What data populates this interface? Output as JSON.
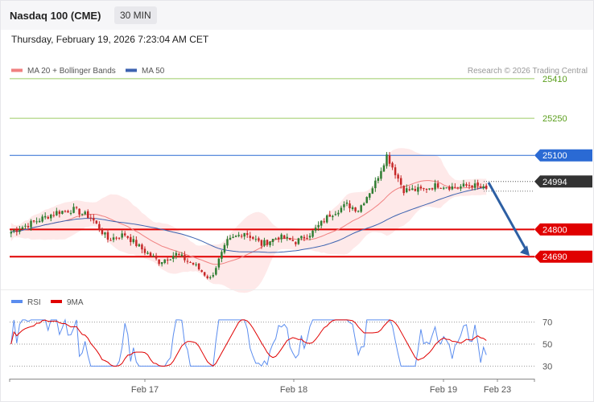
{
  "header": {
    "title": "Nasdaq 100 (CME)",
    "timeframe": "30 MIN"
  },
  "datetime": "Thursday, February 19, 2026 7:23:04 AM CET",
  "legend": {
    "ma20_label": "MA 20 + Bollinger Bands",
    "ma50_label": "MA 50",
    "copyright": "Research © 2026 Trading Central"
  },
  "rsi_legend": {
    "rsi_label": "RSI",
    "ma_label": "9MA"
  },
  "colors": {
    "bollinger": "#fde0e0",
    "ma20": "#f08080",
    "ma50": "#3d63b0",
    "candle_up": "#2e7d32",
    "candle_down": "#c62828",
    "resistance_green": "#9ccc65",
    "pivot_blue": "#2a6ad4",
    "support_red": "#e00000",
    "arrow": "#2d5fa3",
    "rsi": "#5b8def",
    "rsi_ma": "#e00000"
  },
  "chart_data": {
    "type": "candlestick",
    "price_axis": {
      "range": [
        24515,
        25465
      ]
    },
    "levels": [
      {
        "value": 25410,
        "label": "25410",
        "kind": "resistance"
      },
      {
        "value": 25250,
        "label": "25250",
        "kind": "resistance"
      },
      {
        "value": 25100,
        "label": "25100",
        "kind": "pivot"
      },
      {
        "value": 24994,
        "label": "24994",
        "kind": "last"
      },
      {
        "value": 24800,
        "label": "24800",
        "kind": "support"
      },
      {
        "value": 24690,
        "label": "24690",
        "kind": "support"
      }
    ],
    "forecast_arrow": {
      "from": 24990,
      "to": 24690
    },
    "x_ticks": [
      "Feb 17",
      "Feb 18",
      "Feb 19",
      "Feb 23"
    ],
    "rsi": {
      "range": [
        20,
        80
      ],
      "levels": [
        70,
        50,
        30
      ]
    },
    "path_anchors": [
      [
        0,
        24790
      ],
      [
        8,
        24830
      ],
      [
        16,
        24870
      ],
      [
        22,
        24880
      ],
      [
        28,
        24850
      ],
      [
        34,
        24760
      ],
      [
        40,
        24780
      ],
      [
        46,
        24720
      ],
      [
        52,
        24670
      ],
      [
        58,
        24700
      ],
      [
        64,
        24660
      ],
      [
        70,
        24600
      ],
      [
        76,
        24750
      ],
      [
        82,
        24790
      ],
      [
        88,
        24740
      ],
      [
        94,
        24770
      ],
      [
        100,
        24750
      ],
      [
        106,
        24790
      ],
      [
        112,
        24860
      ],
      [
        118,
        24900
      ],
      [
        122,
        24880
      ],
      [
        128,
        24990
      ],
      [
        132,
        25100
      ],
      [
        138,
        24960
      ],
      [
        144,
        24960
      ],
      [
        150,
        24980
      ],
      [
        156,
        24970
      ],
      [
        162,
        24980
      ],
      [
        167,
        24960
      ]
    ],
    "candle_count": 168
  }
}
